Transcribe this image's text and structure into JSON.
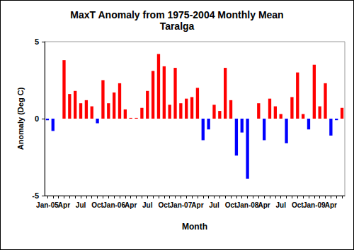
{
  "chart_data": {
    "type": "bar",
    "title": "MaxT Anomaly from 1975-2004 Monthly Mean",
    "subtitle": "Taralga",
    "x_label": "Month",
    "y_label": "Anomaly (Deg C)",
    "categories": [
      "Jan-05",
      null,
      null,
      "Apr",
      null,
      null,
      "Jul",
      null,
      null,
      "Oct",
      null,
      null,
      "Jan-06",
      null,
      null,
      "Apr",
      null,
      null,
      "Jul",
      null,
      null,
      "Oct",
      null,
      null,
      "Jan-07",
      null,
      null,
      "Apr",
      null,
      null,
      "Jul",
      null,
      null,
      "Oct",
      null,
      null,
      "Jan-08",
      null,
      null,
      "Apr",
      null,
      null,
      "Jul",
      null,
      null,
      "Oct",
      null,
      null,
      "Jan-09",
      null,
      null,
      "Apr",
      null,
      null
    ],
    "values": [
      -0.1,
      -0.8,
      0,
      3.8,
      1.6,
      1.8,
      1.0,
      1.2,
      0.8,
      -0.3,
      2.5,
      1.0,
      1.7,
      2.3,
      0.6,
      0.05,
      0.05,
      0.7,
      1.8,
      3.1,
      4.2,
      3.4,
      0.9,
      3.3,
      1.0,
      1.3,
      1.4,
      2.0,
      -1.4,
      -0.7,
      0.9,
      0.5,
      3.3,
      1.2,
      -2.4,
      -0.9,
      -3.9,
      0,
      1.0,
      -1.4,
      1.3,
      0.8,
      0.3,
      -1.6,
      1.4,
      3.0,
      0.3,
      -0.7,
      3.5,
      0.8,
      2.3,
      -1.1,
      -0.1,
      0.7
    ],
    "colors": [
      "#0000ff",
      "#0000ff",
      "#ff0000",
      "#ff0000",
      "#ff0000",
      "#ff0000",
      "#ff0000",
      "#ff0000",
      "#ff0000",
      "#0000ff",
      "#ff0000",
      "#ff0000",
      "#ff0000",
      "#ff0000",
      "#ff0000",
      "#ff0000",
      "#ff0000",
      "#ff0000",
      "#ff0000",
      "#ff0000",
      "#ff0000",
      "#ff0000",
      "#ff0000",
      "#ff0000",
      "#ff0000",
      "#ff0000",
      "#ff0000",
      "#ff0000",
      "#0000ff",
      "#0000ff",
      "#ff0000",
      "#ff0000",
      "#ff0000",
      "#ff0000",
      "#0000ff",
      "#0000ff",
      "#0000ff",
      "#ff0000",
      "#ff0000",
      "#0000ff",
      "#ff0000",
      "#ff0000",
      "#ff0000",
      "#0000ff",
      "#ff0000",
      "#ff0000",
      "#ff0000",
      "#0000ff",
      "#ff0000",
      "#ff0000",
      "#ff0000",
      "#0000ff",
      "#0000ff",
      "#ff0000"
    ],
    "ylim": [
      -5,
      5
    ],
    "yticks": [
      -5,
      0,
      5
    ],
    "grid": false
  }
}
